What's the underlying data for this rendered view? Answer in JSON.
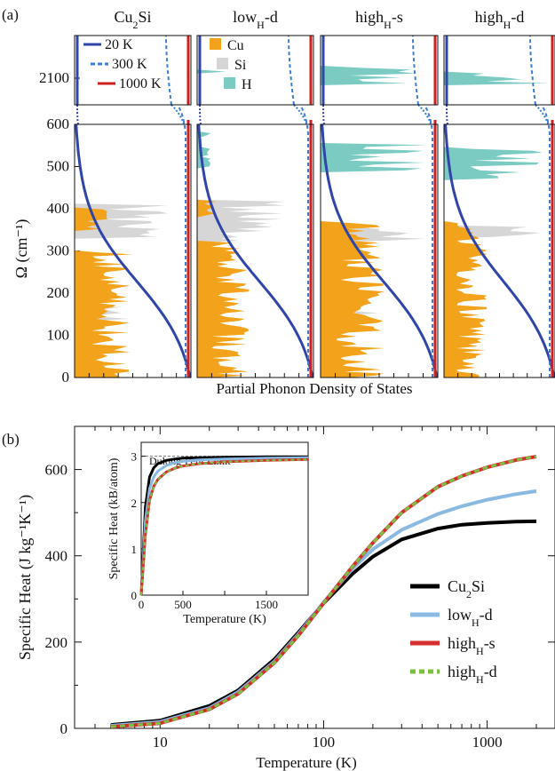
{
  "panel_a": {
    "label": "(a)",
    "ylabel": "Ω  (cm⁻¹)",
    "xlabel": "Partial Phonon Density of States",
    "ticks_lower": [
      "0",
      "100",
      "200",
      "300",
      "400",
      "500",
      "600"
    ],
    "ticks_upper": [
      "2100"
    ],
    "legend_temps": [
      "20 K",
      "300 K",
      "1000 K"
    ],
    "legend_species": [
      "Cu",
      "Si",
      "H"
    ],
    "colors": {
      "Cu": "#f2a31b",
      "Si": "#d6d6d6",
      "H": "#7ccbc3",
      "t20": "#2f45a8",
      "t300": "#3b7fd0",
      "t1000": "#cf1f1f"
    }
  },
  "panel_b": {
    "label": "(b)",
    "xlabel": "Temperature (K)",
    "ylabel": "Specific Heat  (J kg⁻¹K⁻¹)",
    "xticks": [
      "10",
      "100",
      "1000"
    ],
    "yticks": [
      "0",
      "200",
      "400",
      "600"
    ],
    "inset": {
      "xlabel": "Temperature (K)",
      "ylabel": "Specific Heat (k_B/atom)",
      "xticks": [
        "0",
        "500",
        "1500"
      ],
      "yticks": [
        "0",
        "1",
        "2",
        "3"
      ],
      "annotation": "Dulong-Petit Limit"
    }
  },
  "chart_data": [
    {
      "type": "area",
      "xlabel": "Partial Phonon Density of States",
      "ylabel": "Ω (cm⁻¹)",
      "ylim": [
        0,
        600
      ],
      "ylim_upper": [
        2050,
        2180
      ],
      "panels": [
        {
          "name": "Cu₂Si",
          "series": [
            {
              "name": "Cu",
              "bands": [
                [
                  0,
                  300,
                  0.5
                ],
                [
                  350,
                  400,
                  0.3
                ]
              ]
            },
            {
              "name": "Si",
              "bands": [
                [
                  130,
                  170,
                  0.5
                ],
                [
                  330,
                  410,
                  0.85
                ]
              ]
            }
          ]
        },
        {
          "name": "low_H-d",
          "series": [
            {
              "name": "Cu",
              "bands": [
                [
                  0,
                  320,
                  0.45
                ],
                [
                  380,
                  420,
                  0.2
                ]
              ]
            },
            {
              "name": "Si",
              "bands": [
                [
                  320,
                  420,
                  0.8
                ]
              ]
            },
            {
              "name": "H",
              "bands": [
                [
                  500,
                  580,
                  0.12
                ],
                [
                  2110,
                  2115,
                  0.65
                ]
              ]
            }
          ]
        },
        {
          "name": "high_H-s",
          "series": [
            {
              "name": "Cu",
              "bands": [
                [
                  0,
                  370,
                  0.55
                ]
              ]
            },
            {
              "name": "Si",
              "bands": [
                [
                  140,
                  160,
                  0.65
                ],
                [
                  320,
                  360,
                  0.9
                ]
              ]
            },
            {
              "name": "H",
              "bands": [
                [
                  490,
                  555,
                  0.95
                ],
                [
                  2090,
                  2120,
                  0.95
                ]
              ]
            }
          ]
        },
        {
          "name": "high_H-d",
          "series": [
            {
              "name": "Cu",
              "bands": [
                [
                  0,
                  370,
                  0.4
                ]
              ]
            },
            {
              "name": "Si",
              "bands": [
                [
                  330,
                  360,
                  0.9
                ]
              ]
            },
            {
              "name": "H",
              "bands": [
                [
                  470,
                  545,
                  0.95
                ],
                [
                  2090,
                  2110,
                  0.95
                ]
              ]
            }
          ]
        }
      ],
      "bose_einstein": [
        {
          "name": "20 K",
          "style": "solid"
        },
        {
          "name": "300 K",
          "style": "dashed"
        },
        {
          "name": "1000 K",
          "style": "solid"
        }
      ]
    },
    {
      "type": "line",
      "xscale": "log",
      "xlabel": "Temperature (K)",
      "ylabel": "Specific Heat (J kg⁻¹K⁻¹)",
      "xlim": [
        3,
        2600
      ],
      "ylim": [
        0,
        700
      ],
      "legend_position": "right",
      "x": [
        5,
        10,
        20,
        30,
        50,
        70,
        100,
        150,
        200,
        300,
        500,
        700,
        1000,
        1500,
        2000
      ],
      "series": [
        {
          "name": "Cu₂Si",
          "color": "#000000",
          "values": [
            8,
            18,
            52,
            88,
            160,
            222,
            290,
            358,
            398,
            438,
            463,
            472,
            476,
            479,
            480
          ]
        },
        {
          "name": "low_H-d",
          "color": "#8ab9e2",
          "values": [
            6,
            15,
            47,
            84,
            155,
            218,
            292,
            370,
            415,
            460,
            497,
            515,
            530,
            543,
            550
          ]
        },
        {
          "name": "high_H-s",
          "color": "#d32f2f",
          "values": [
            4,
            12,
            44,
            80,
            152,
            215,
            290,
            375,
            430,
            500,
            560,
            585,
            605,
            622,
            630
          ]
        },
        {
          "name": "high_H-d",
          "color": "#7cc242",
          "dashed": true,
          "values": [
            4,
            12,
            44,
            80,
            152,
            215,
            290,
            375,
            430,
            500,
            560,
            585,
            605,
            622,
            630
          ]
        }
      ],
      "inset": {
        "xlabel": "Temperature (K)",
        "ylabel": "Specific Heat (k_B/atom)",
        "xlim": [
          0,
          2000
        ],
        "ylim": [
          0,
          3.3
        ],
        "dulong_petit": 3.0,
        "x": [
          0,
          50,
          100,
          150,
          200,
          300,
          400,
          500,
          700,
          1000,
          1500,
          2000
        ],
        "series": [
          {
            "name": "Cu₂Si",
            "values": [
              0,
              1.9,
              2.55,
              2.75,
              2.84,
              2.91,
              2.94,
              2.96,
              2.97,
              2.98,
              2.99,
              2.99
            ]
          },
          {
            "name": "low_H-d",
            "values": [
              0,
              1.6,
              2.3,
              2.55,
              2.68,
              2.8,
              2.86,
              2.89,
              2.92,
              2.94,
              2.96,
              2.97
            ]
          },
          {
            "name": "high_H-s",
            "values": [
              0,
              1.3,
              2.05,
              2.35,
              2.5,
              2.66,
              2.74,
              2.79,
              2.84,
              2.88,
              2.91,
              2.93
            ]
          },
          {
            "name": "high_H-d",
            "values": [
              0,
              1.3,
              2.05,
              2.35,
              2.5,
              2.66,
              2.74,
              2.79,
              2.84,
              2.88,
              2.91,
              2.93
            ]
          }
        ]
      }
    }
  ]
}
